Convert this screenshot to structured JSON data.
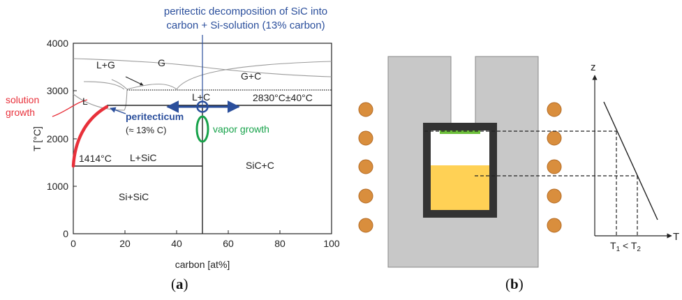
{
  "panel_a": {
    "caption_open": "(",
    "caption_letter": "a",
    "caption_close": ")",
    "y_axis_label": "T [°C]",
    "x_axis_label": "carbon [at%]",
    "y_ticks": [
      "0",
      "1000",
      "2000",
      "3000",
      "4000"
    ],
    "x_ticks": [
      "0",
      "20",
      "40",
      "60",
      "80",
      "100"
    ],
    "top_annotation_line1": "peritectic decomposition of SiC into",
    "top_annotation_line2": "carbon + Si-solution (13% carbon)",
    "region_L_plus_G": "L+G",
    "region_G": "G",
    "region_G_plus_C": "G+C",
    "region_L": "L",
    "region_L_plus_C": "L+C",
    "peritectic_temp": "2830°C±40°C",
    "solution_growth_line1": "solution",
    "solution_growth_line2": "growth",
    "peritecticum": "peritecticum",
    "peritecticum_sub": "(≈ 13% C)",
    "vapor_growth": "vapor growth",
    "melt_temp": "1414°C",
    "region_L_plus_SiC": "L+SiC",
    "region_SiC_plus_C": "SiC+C",
    "region_Si_plus_SiC": "Si+SiC",
    "colors": {
      "blue": "#2b4f9c",
      "red": "#e8303a",
      "green": "#17a24a",
      "grey": "#9a9a9a"
    }
  },
  "panel_b": {
    "caption_open": "(",
    "caption_letter": "b",
    "caption_close": ")",
    "z_axis_label": "z",
    "t_axis_label": "T",
    "t1_label": "T",
    "t1_sub": "1",
    "lt_label": " < T",
    "t2_sub": "2",
    "colors": {
      "coil": "#d98e3d",
      "crucible_wall": "#c8c8c8",
      "melt": "#ffd155",
      "seed": "#6cbf3a"
    }
  }
}
